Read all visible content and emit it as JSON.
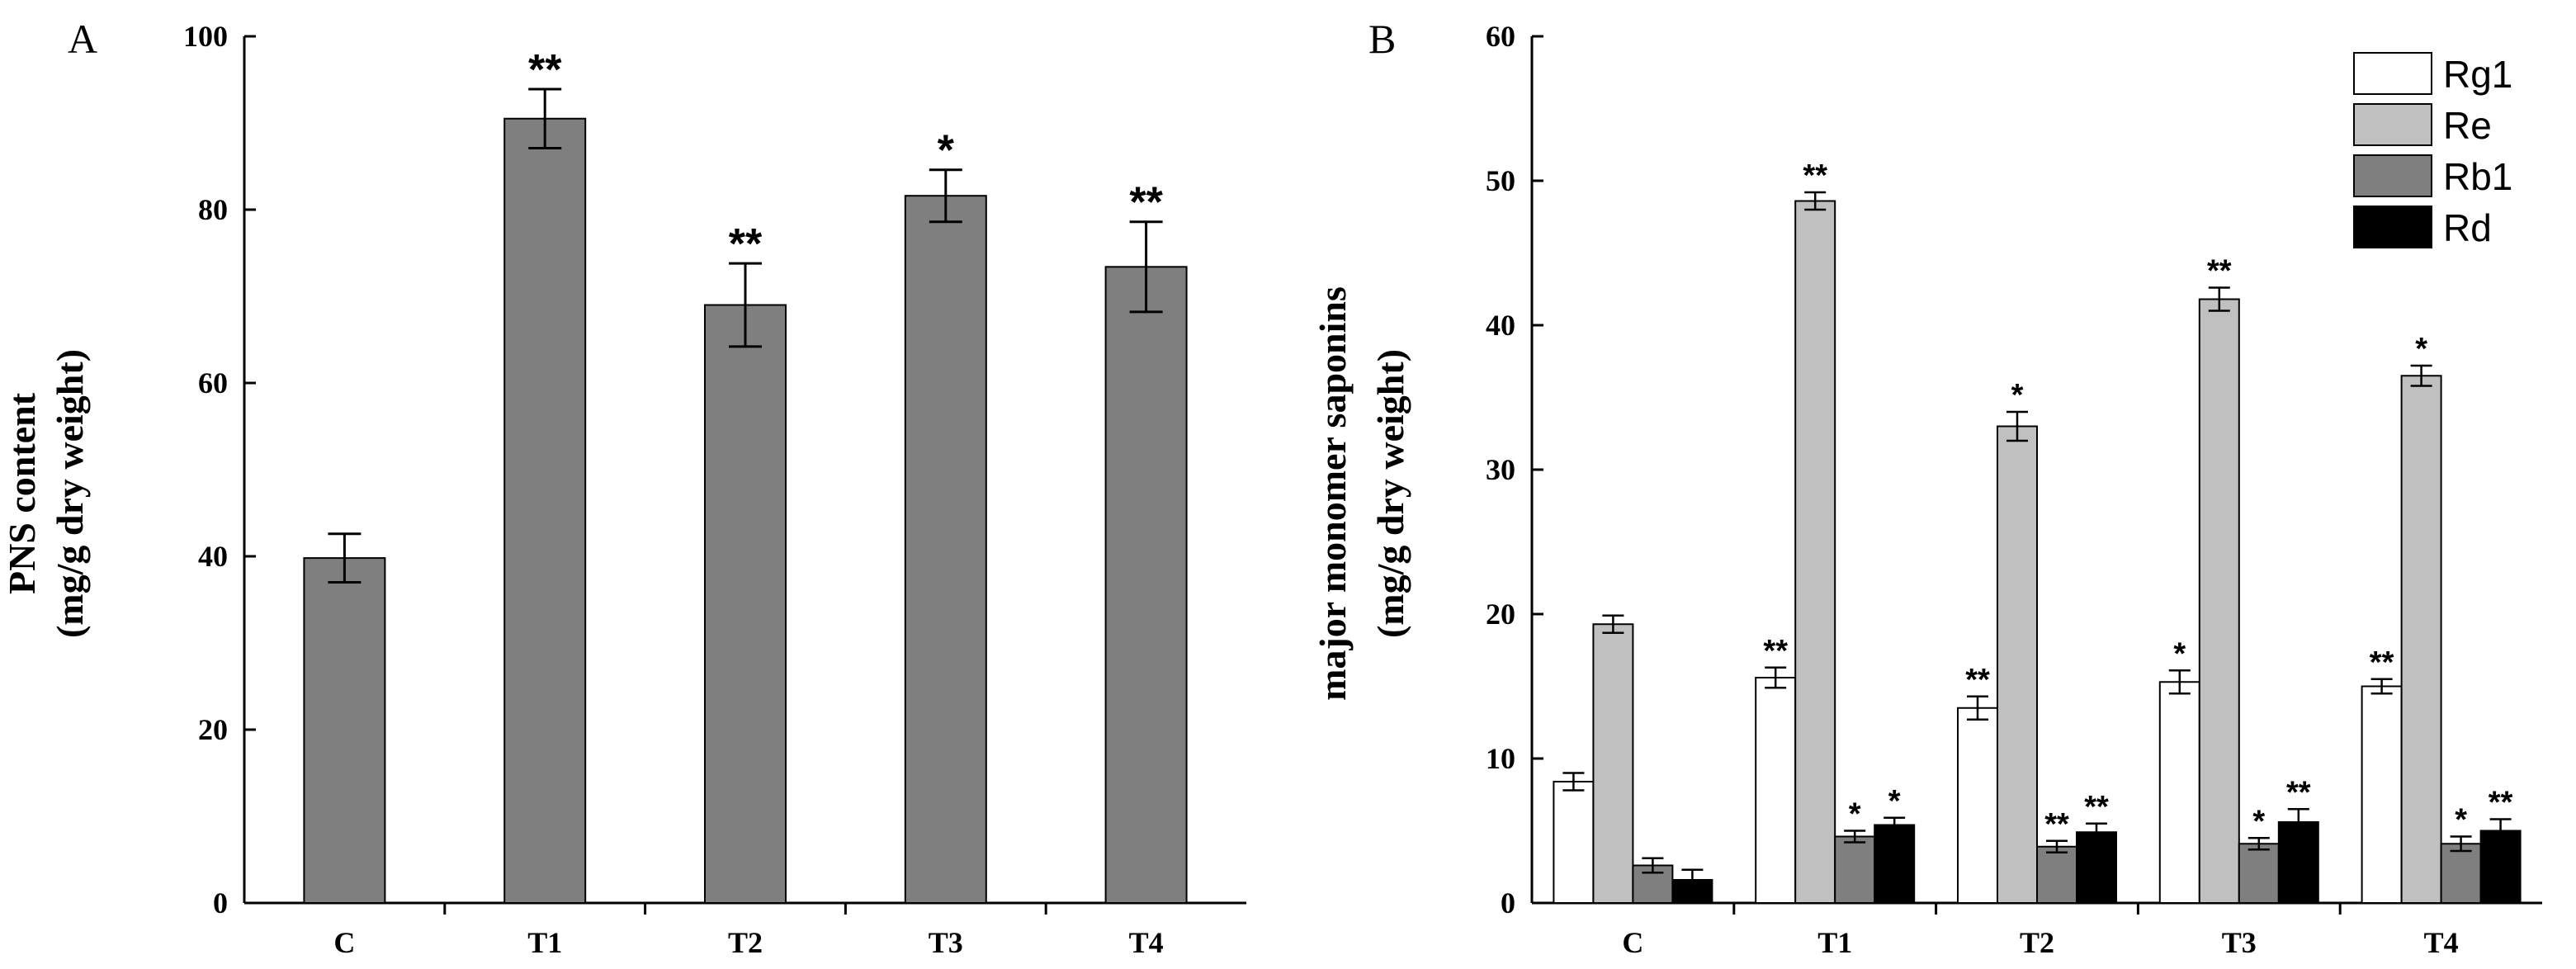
{
  "chart_data": [
    {
      "panel": "A",
      "type": "bar",
      "categories": [
        "C",
        "T1",
        "T2",
        "T3",
        "T4"
      ],
      "values": [
        39.8,
        90.5,
        69.0,
        81.6,
        73.4
      ],
      "errors": [
        2.8,
        3.4,
        4.8,
        3.0,
        5.2
      ],
      "significance": [
        "",
        "**",
        "**",
        "*",
        "**"
      ],
      "ylabel_line1": "PNS content",
      "ylabel_line2": "(mg/g dry weight)",
      "ylim": [
        0,
        100
      ],
      "yticks": [
        "0",
        "20",
        "40",
        "60",
        "80",
        "100"
      ],
      "bar_color": "#7f7f7f"
    },
    {
      "panel": "B",
      "type": "bar",
      "categories": [
        "C",
        "T1",
        "T2",
        "T3",
        "T4"
      ],
      "series": [
        {
          "name": "Rg1",
          "color": "#ffffff",
          "values": [
            8.4,
            15.6,
            13.5,
            15.3,
            15.0
          ],
          "errors": [
            0.6,
            0.7,
            0.8,
            0.8,
            0.5
          ],
          "significance": [
            "",
            "**",
            "**",
            "*",
            "**"
          ]
        },
        {
          "name": "Re",
          "color": "#c0c0c0",
          "values": [
            19.3,
            48.6,
            33.0,
            41.8,
            36.5
          ],
          "errors": [
            0.6,
            0.6,
            1.0,
            0.8,
            0.7
          ],
          "significance": [
            "",
            "**",
            "*",
            "**",
            "*"
          ]
        },
        {
          "name": "Rb1",
          "color": "#7f7f7f",
          "values": [
            2.6,
            4.6,
            3.9,
            4.1,
            4.1
          ],
          "errors": [
            0.5,
            0.4,
            0.4,
            0.4,
            0.5
          ],
          "significance": [
            "",
            "*",
            "**",
            "*",
            "*"
          ]
        },
        {
          "name": "Rd",
          "color": "#000000",
          "values": [
            1.6,
            5.4,
            4.9,
            5.6,
            5.0
          ],
          "errors": [
            0.7,
            0.5,
            0.6,
            0.9,
            0.8
          ],
          "significance": [
            "",
            "*",
            "**",
            "**",
            "**"
          ]
        }
      ],
      "ylabel_line1": "major monomer saponins",
      "ylabel_line2": "(mg/g dry weight)",
      "ylim": [
        0,
        60
      ],
      "yticks": [
        "0",
        "10",
        "20",
        "30",
        "40",
        "50",
        "60"
      ],
      "legend": "top-right"
    }
  ]
}
